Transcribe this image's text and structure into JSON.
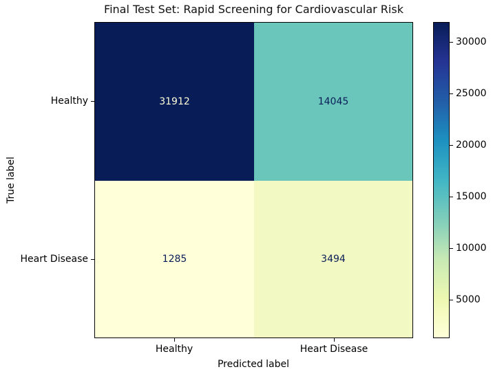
{
  "chart_data": {
    "type": "heatmap",
    "subtype": "confusion-matrix",
    "title": "Final Test Set: Rapid Screening for Cardiovascular Risk",
    "xlabel": "Predicted label",
    "ylabel": "True label",
    "x_categories": [
      "Healthy",
      "Heart Disease"
    ],
    "y_categories": [
      "Healthy",
      "Heart Disease"
    ],
    "values": [
      [
        31912,
        14045
      ],
      [
        1285,
        3494
      ]
    ],
    "vmin": 1285,
    "vmax": 31912,
    "colormap": "YlGnBu",
    "colormap_stops": [
      "#ffffd9",
      "#edf8b1",
      "#c7e9b4",
      "#7fcdbb",
      "#41b6c4",
      "#1d91c0",
      "#225ea8",
      "#253494",
      "#081d58"
    ],
    "cell_colors": [
      [
        "#081d58",
        "#6ac5bb"
      ],
      [
        "#ffffd9",
        "#f3f9c2"
      ]
    ],
    "cell_text_colors": [
      [
        "#ffffd9",
        "#081d58"
      ],
      [
        "#081d58",
        "#081d58"
      ]
    ],
    "colorbar_ticks": [
      5000,
      10000,
      15000,
      20000,
      25000,
      30000
    ],
    "legend_position": "right-colorbar",
    "grid": false
  }
}
